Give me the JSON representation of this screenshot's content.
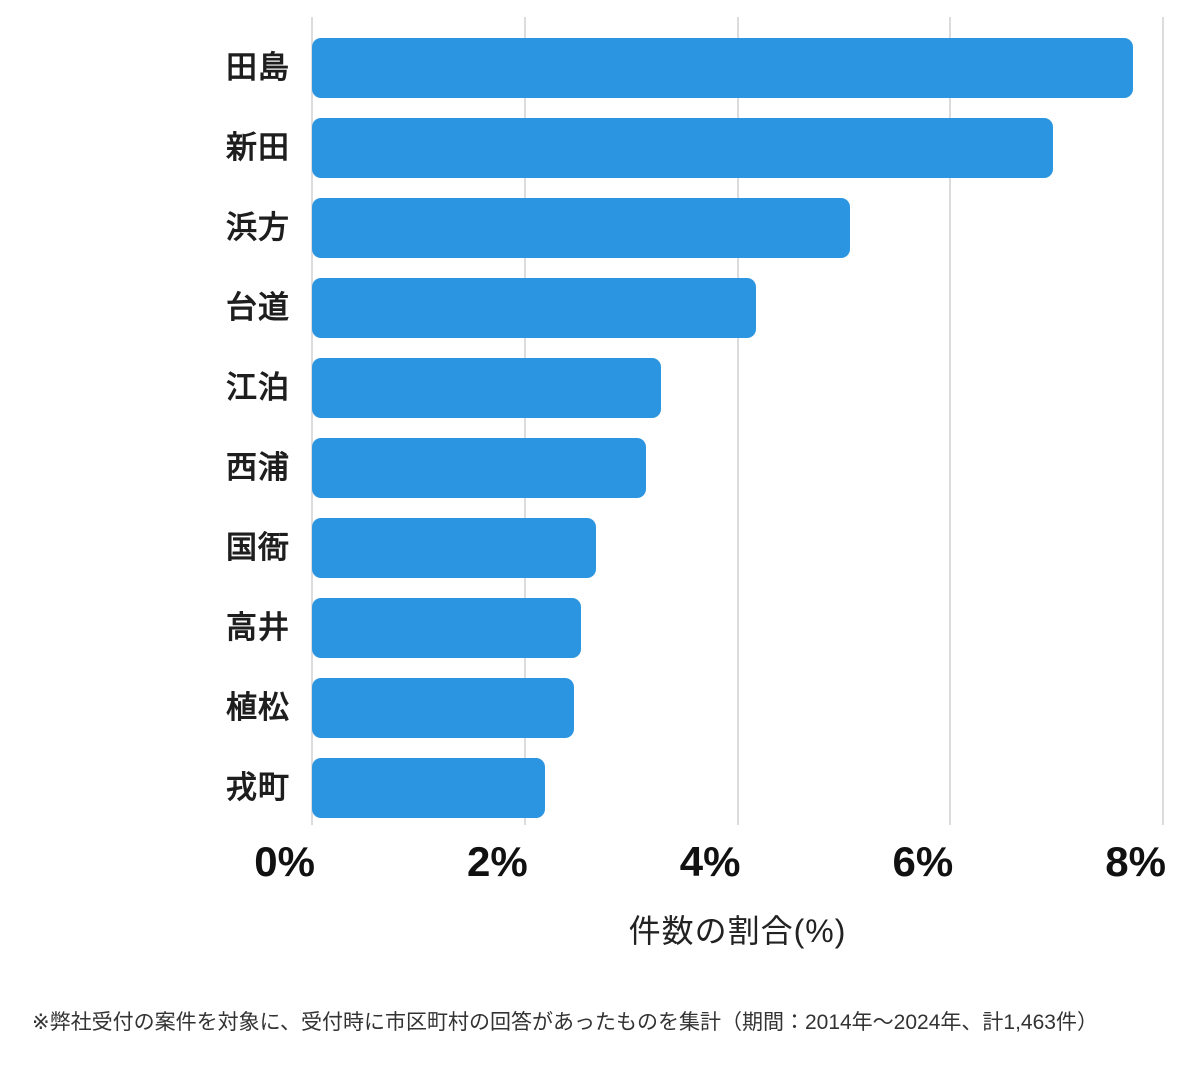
{
  "chart_data": {
    "type": "bar",
    "orientation": "horizontal",
    "title": "",
    "categories": [
      "田島",
      "新田",
      "浜方",
      "台道",
      "江泊",
      "西浦",
      "国衙",
      "高井",
      "植松",
      "戎町"
    ],
    "values": [
      7.72,
      6.97,
      5.06,
      4.17,
      3.28,
      3.14,
      2.67,
      2.53,
      2.46,
      2.19
    ],
    "xlabel": "件数の割合(%)",
    "ylabel": "",
    "xlim": [
      0,
      8
    ],
    "x_tick_values": [
      0,
      2,
      4,
      6,
      8
    ],
    "x_tick_labels": [
      "0%",
      "2%",
      "4%",
      "6%",
      "8%"
    ],
    "grid": true,
    "legend": false,
    "bar_color": "#2b95e1",
    "grid_color": "#dcdcdc"
  },
  "footnote": "※弊社受付の案件を対象に、受付時に市区町村の回答があったものを集計（期間：2014年～2024年、計1,463件）"
}
